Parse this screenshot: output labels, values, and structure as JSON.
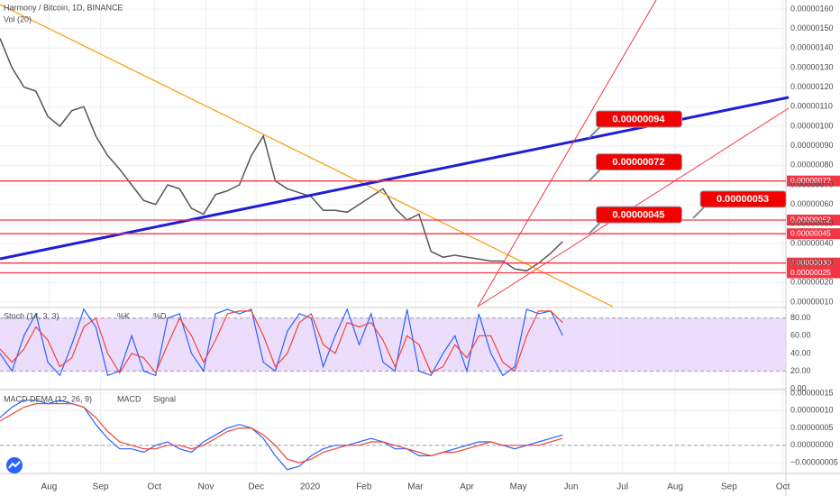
{
  "chart_data": [
    {
      "type": "line",
      "title": "Harmony / Bitcoin, 1D, BINANCE",
      "subtitle": "Vol (20)",
      "color": "#555555",
      "x": [
        0,
        1,
        2,
        3,
        4,
        5,
        6,
        7,
        8,
        9,
        10,
        11,
        12,
        13,
        14,
        15,
        16,
        17,
        18,
        19,
        20,
        21,
        22,
        23,
        24,
        25,
        26,
        27,
        28,
        29,
        30,
        31,
        32,
        33,
        34,
        35,
        36,
        37,
        38,
        39,
        40,
        41,
        42,
        43,
        44,
        45,
        46,
        47
      ],
      "values": [
        1.45e-06,
        1.3e-06,
        1.2e-06,
        1.18e-06,
        1.05e-06,
        1e-06,
        1.08e-06,
        1.1e-06,
        9.5e-07,
        8.5e-07,
        7.8e-07,
        7e-07,
        6.2e-07,
        6e-07,
        7e-07,
        6.8e-07,
        5.8e-07,
        5.5e-07,
        6.5e-07,
        6.7e-07,
        7e-07,
        8.5e-07,
        9.5e-07,
        7.2e-07,
        6.8e-07,
        6.6e-07,
        6.4e-07,
        5.7e-07,
        5.7e-07,
        5.6e-07,
        6e-07,
        6.4e-07,
        6.8e-07,
        5.8e-07,
        5.2e-07,
        5.5e-07,
        3.6e-07,
        3.3e-07,
        3.4e-07,
        3.3e-07,
        3.2e-07,
        3.1e-07,
        3.1e-07,
        2.7e-07,
        2.6e-07,
        3e-07,
        3.5e-07,
        4.1e-07
      ],
      "xlim": [
        0,
        65.5
      ],
      "xticks": [
        {
          "value": 4.1,
          "label": "Aug"
        },
        {
          "value": 8.4,
          "label": "Sep"
        },
        {
          "value": 12.9,
          "label": "Oct"
        },
        {
          "value": 17.2,
          "label": "Nov"
        },
        {
          "value": 21.4,
          "label": "Dec"
        },
        {
          "value": 25.9,
          "label": "2020"
        },
        {
          "value": 30.4,
          "label": "Feb"
        },
        {
          "value": 34.7,
          "label": "Mar"
        },
        {
          "value": 39.0,
          "label": "Apr"
        },
        {
          "value": 43.3,
          "label": "May"
        },
        {
          "value": 47.7,
          "label": "Jun"
        },
        {
          "value": 52.0,
          "label": "Jul"
        },
        {
          "value": 56.4,
          "label": "Aug"
        },
        {
          "value": 60.9,
          "label": "Sep"
        },
        {
          "value": 65.4,
          "label": "Oct"
        }
      ],
      "ylim": [
        7.7e-08,
        1.646e-06
      ],
      "yticks": [
        {
          "value": 1.6e-06,
          "label": "0.00000160"
        },
        {
          "value": 1.5e-06,
          "label": "0.00000150"
        },
        {
          "value": 1.4e-06,
          "label": "0.00000140"
        },
        {
          "value": 1.3e-06,
          "label": "0.00000130"
        },
        {
          "value": 1.2e-06,
          "label": "0.00000120"
        },
        {
          "value": 1.1e-06,
          "label": "0.00000110"
        },
        {
          "value": 1e-06,
          "label": "0.00000100"
        },
        {
          "value": 9e-07,
          "label": "0.00000090"
        },
        {
          "value": 8e-07,
          "label": "0.00000080"
        },
        {
          "value": 7e-07,
          "label": "0.00000070"
        },
        {
          "value": 6e-07,
          "label": "0.00000060"
        },
        {
          "value": 5e-07,
          "label": "0.00000050"
        },
        {
          "value": 4e-07,
          "label": "0.00000040"
        },
        {
          "value": 3e-07,
          "label": "0.00000030"
        },
        {
          "value": 2e-07,
          "label": "0.00000020"
        },
        {
          "value": 1e-07,
          "label": "0.00000010"
        }
      ],
      "grid": true,
      "hlines": [
        {
          "value": 7.2e-07,
          "label": "0.00000072"
        },
        {
          "value": 5.2e-07,
          "label": "0.00000052"
        },
        {
          "value": 4.5e-07,
          "label": "0.00000045"
        },
        {
          "value": 3e-07,
          "label": "0.00000030"
        },
        {
          "value": 2.5e-07,
          "label": "0.00000025"
        }
      ],
      "callouts": [
        {
          "x": 49.2,
          "value": 9.4e-07,
          "label": "0.00000094"
        },
        {
          "x": 49.2,
          "value": 7.2e-07,
          "label": "0.00000072"
        },
        {
          "x": 57.9,
          "value": 5.3e-07,
          "label": "0.00000053"
        },
        {
          "x": 49.2,
          "value": 4.5e-07,
          "label": "0.00000045"
        }
      ]
    },
    {
      "type": "line",
      "title": "Stoch (14, 3, 3)",
      "ylim": [
        -1,
        91
      ],
      "yticks": [
        {
          "value": 80,
          "label": "80.00"
        },
        {
          "value": 60,
          "label": "60.00"
        },
        {
          "value": 40,
          "label": "40.00"
        },
        {
          "value": 20,
          "label": "20.00"
        },
        {
          "value": 0,
          "label": "0.00"
        }
      ],
      "band": [
        20,
        80
      ],
      "series": [
        {
          "name": "%K",
          "color": "#2962ff",
          "values": [
            40,
            20,
            60,
            85,
            30,
            15,
            50,
            90,
            70,
            15,
            20,
            60,
            20,
            15,
            80,
            85,
            40,
            20,
            85,
            90,
            85,
            90,
            30,
            20,
            65,
            85,
            80,
            25,
            60,
            90,
            50,
            85,
            30,
            20,
            90,
            20,
            15,
            40,
            60,
            20,
            85,
            40,
            15,
            25,
            90,
            85,
            88,
            60
          ]
        },
        {
          "name": "%D",
          "color": "#f44336",
          "values": [
            45,
            30,
            45,
            70,
            55,
            25,
            35,
            70,
            80,
            40,
            18,
            40,
            35,
            18,
            50,
            80,
            60,
            30,
            55,
            85,
            88,
            88,
            60,
            25,
            40,
            75,
            85,
            50,
            40,
            75,
            70,
            75,
            55,
            25,
            60,
            50,
            18,
            25,
            50,
            35,
            60,
            60,
            30,
            20,
            60,
            88,
            88,
            75
          ]
        }
      ]
    },
    {
      "type": "line",
      "title": "MACD DEMA (12, 26, 9)",
      "ylim": [
        -8.1e-08,
        1.58e-07
      ],
      "yticks": [
        {
          "value": 1.5e-07,
          "label": "0.00000015"
        },
        {
          "value": 1e-07,
          "label": "0.00000010"
        },
        {
          "value": 5e-08,
          "label": "0.00000005"
        },
        {
          "value": 0,
          "label": "0.00000000"
        },
        {
          "value": -5e-08,
          "label": "−0.00000005"
        }
      ],
      "series": [
        {
          "name": "MACD",
          "color": "#2962ff",
          "values": [
            8e-08,
            1.1e-07,
            1.3e-07,
            1.3e-07,
            1.2e-07,
            1.3e-07,
            1.2e-07,
            1.1e-07,
            6e-08,
            2e-08,
            -1e-08,
            -1e-08,
            -2e-08,
            0,
            1e-08,
            -1e-08,
            -2e-08,
            1e-08,
            3e-08,
            5e-08,
            6e-08,
            5e-08,
            2e-08,
            -3e-08,
            -7e-08,
            -6e-08,
            -3e-08,
            -1e-08,
            0,
            0,
            1e-08,
            2e-08,
            1e-08,
            -1e-08,
            -1e-08,
            -3e-08,
            -3e-08,
            -2e-08,
            -1e-08,
            0,
            1e-08,
            1e-08,
            0,
            -1e-08,
            0,
            1e-08,
            2e-08,
            3e-08
          ]
        },
        {
          "name": "Signal",
          "color": "#f44336",
          "values": [
            7e-08,
            9e-08,
            1.1e-07,
            1.2e-07,
            1.2e-07,
            1.2e-07,
            1.2e-07,
            1.1e-07,
            8e-08,
            4e-08,
            1e-08,
            0,
            -1e-08,
            -1e-08,
            0,
            0,
            -1e-08,
            0,
            2e-08,
            4e-08,
            5e-08,
            5e-08,
            3e-08,
            0,
            -4e-08,
            -5e-08,
            -4e-08,
            -2e-08,
            -1e-08,
            0,
            0,
            1e-08,
            1e-08,
            0,
            -1e-08,
            -2e-08,
            -3e-08,
            -2e-08,
            -2e-08,
            -1e-08,
            0,
            1e-08,
            0,
            0,
            0,
            0,
            1e-08,
            2e-08
          ]
        }
      ]
    }
  ]
}
